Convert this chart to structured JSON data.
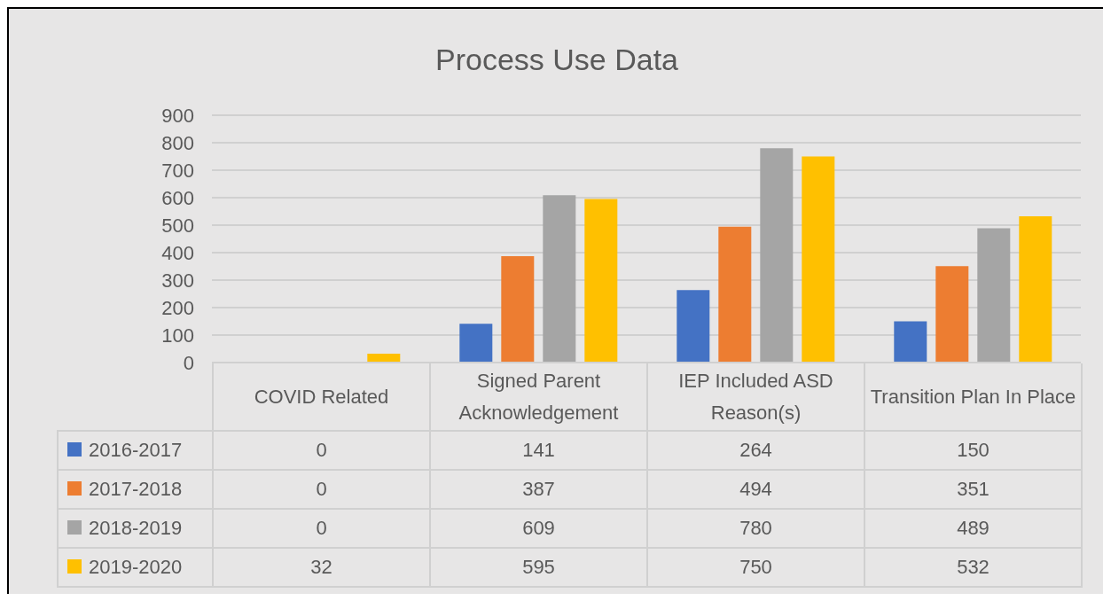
{
  "chart_data": {
    "type": "bar",
    "title": "Process Use Data",
    "categories": [
      "COVID Related",
      "Signed Parent Acknowledgement",
      "IEP Included ASD Reason(s)",
      "Transition Plan In Place"
    ],
    "series": [
      {
        "name": "2016-2017",
        "color": "#4472c4",
        "values": [
          0,
          141,
          264,
          150
        ]
      },
      {
        "name": "2017-2018",
        "color": "#ed7d31",
        "values": [
          0,
          387,
          494,
          351
        ]
      },
      {
        "name": "2018-2019",
        "color": "#a5a5a5",
        "values": [
          0,
          609,
          780,
          489
        ]
      },
      {
        "name": "2019-2020",
        "color": "#ffc000",
        "values": [
          32,
          595,
          750,
          532
        ]
      }
    ],
    "ylim": [
      0,
      900
    ],
    "yticks": [
      0,
      100,
      200,
      300,
      400,
      500,
      600,
      700,
      800,
      900
    ],
    "grid": "y",
    "legend": "bottom",
    "data_labels": true
  }
}
